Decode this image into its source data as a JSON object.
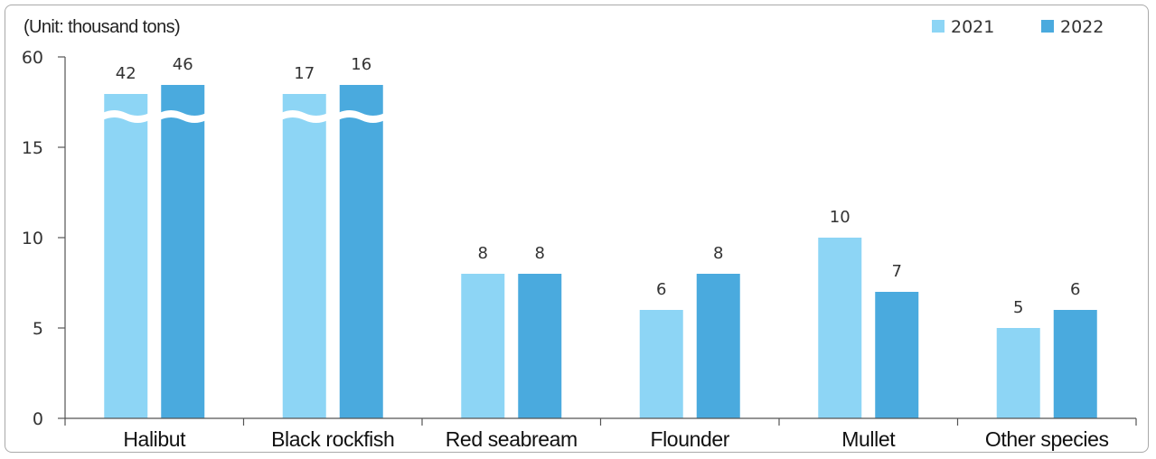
{
  "chart_data": {
    "type": "bar",
    "unit_label": "(Unit: thousand tons)",
    "categories": [
      "Halibut",
      "Black rockfish",
      "Red seabream",
      "Flounder",
      "Mullet",
      "Other species"
    ],
    "series": [
      {
        "name": "2021",
        "color": "#8dd5f5",
        "values": [
          42,
          17,
          8,
          6,
          10,
          5
        ]
      },
      {
        "name": "2022",
        "color": "#4aaade",
        "values": [
          46,
          16,
          8,
          8,
          7,
          6
        ]
      }
    ],
    "y_ticks": [
      "0",
      "5",
      "10",
      "15",
      "60"
    ],
    "axis_break": {
      "between": [
        15,
        60
      ]
    },
    "grid": false,
    "legend_position": "top-right"
  }
}
